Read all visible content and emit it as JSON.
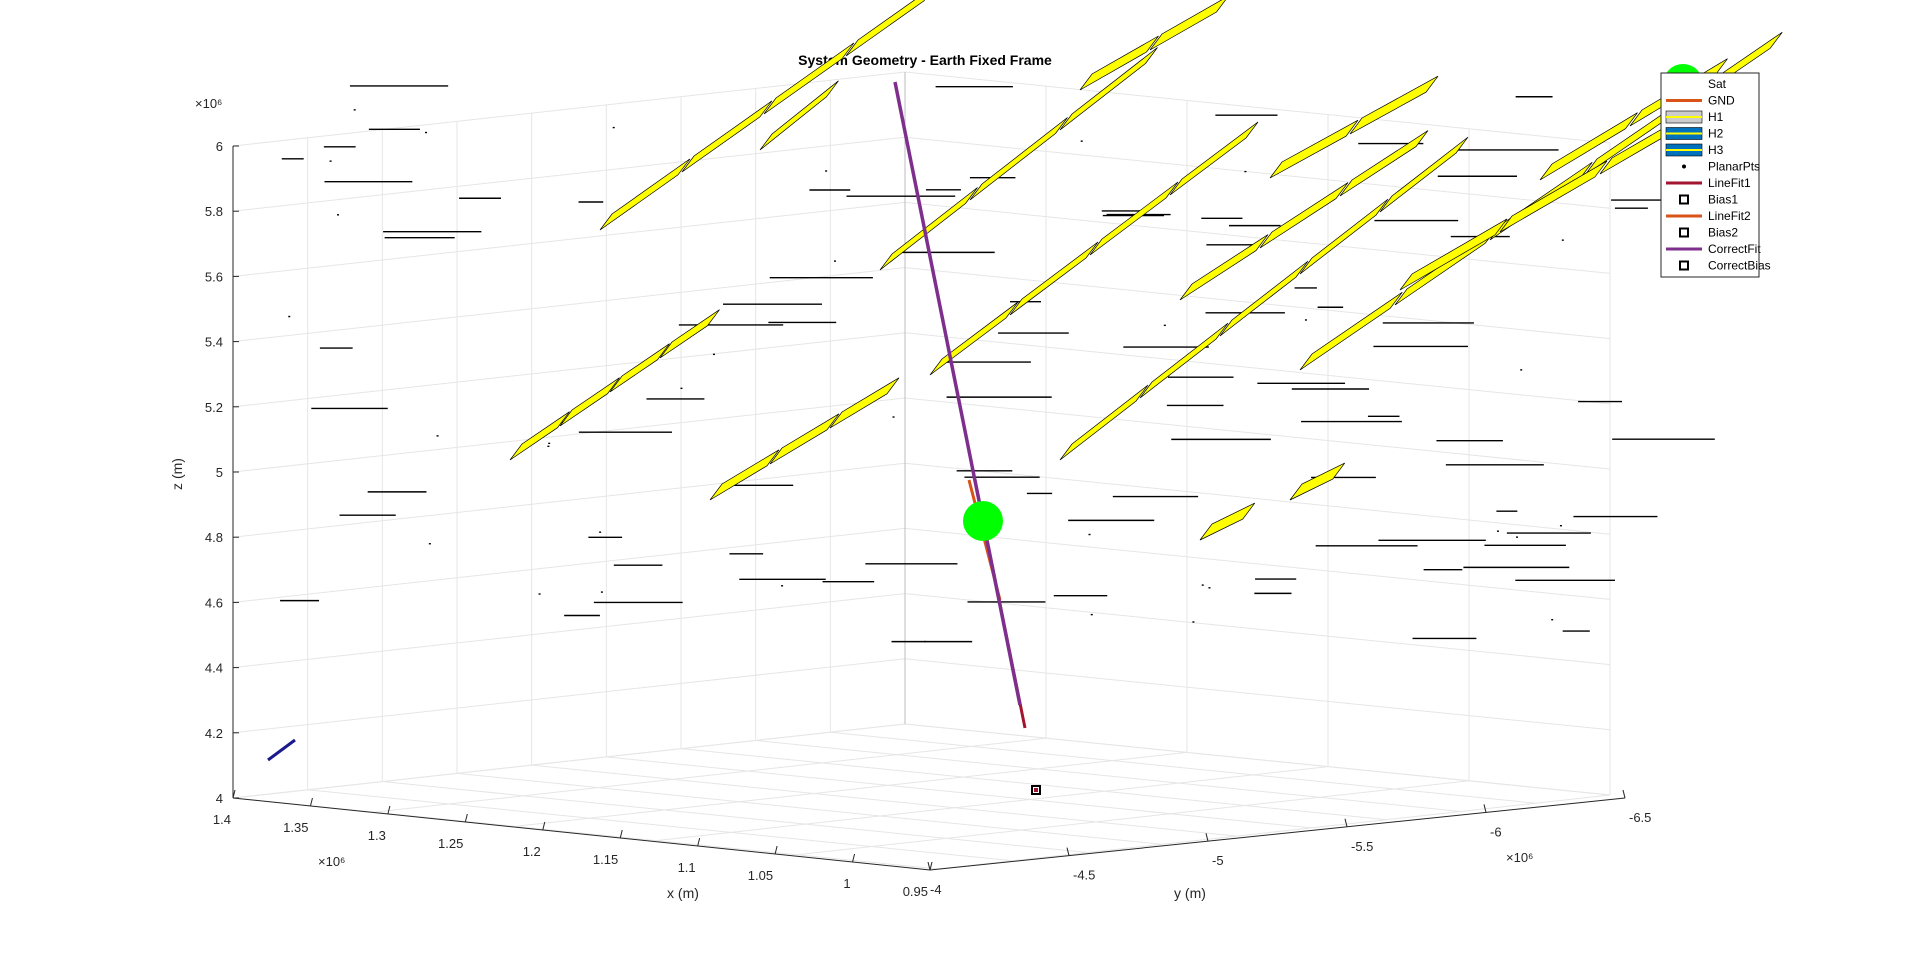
{
  "chart_data": {
    "type": "scatter",
    "title": "System Geometry - Earth Fixed Frame",
    "xlabel": "x (m)",
    "ylabel": "y (m)",
    "zlabel": "z (m)",
    "x_exponent": "×10⁶",
    "y_exponent": "×10⁶",
    "z_exponent": "×10⁶",
    "x_ticks": [
      "1.4",
      "1.35",
      "1.3",
      "1.25",
      "1.2",
      "1.15",
      "1.1",
      "1.05",
      "1",
      "0.95"
    ],
    "y_ticks": [
      "-4",
      "-4.5",
      "-5",
      "-5.5",
      "-6",
      "-6.5"
    ],
    "z_ticks": [
      "4",
      "4.2",
      "4.4",
      "4.6",
      "4.8",
      "5",
      "5.2",
      "5.4",
      "5.6",
      "5.8",
      "6"
    ],
    "xlim": [
      0.95,
      1.4
    ],
    "ylim": [
      -6.5,
      -4
    ],
    "zlim": [
      4,
      6
    ],
    "grid": true,
    "legend_position": "top-right",
    "legend": [
      {
        "label": "Sat",
        "kind": "marker-circle",
        "color": "#00ff00"
      },
      {
        "label": "GND",
        "kind": "line",
        "color": "#d95319"
      },
      {
        "label": "H1",
        "kind": "patch",
        "color": "#cccccc"
      },
      {
        "label": "H2",
        "kind": "patch",
        "color": "#0072bd"
      },
      {
        "label": "H3",
        "kind": "patch",
        "color": "#0072bd"
      },
      {
        "label": "PlanarPts",
        "kind": "marker-dot",
        "color": "#000000"
      },
      {
        "label": "LineFit1",
        "kind": "line",
        "color": "#a2142f"
      },
      {
        "label": "Bias1",
        "kind": "marker-square",
        "color": "#000000"
      },
      {
        "label": "LineFit2",
        "kind": "line",
        "color": "#d95319"
      },
      {
        "label": "Bias2",
        "kind": "marker-square",
        "color": "#000000"
      },
      {
        "label": "CorrectFit",
        "kind": "line",
        "color": "#7e2f8e"
      },
      {
        "label": "CorrectBias",
        "kind": "marker-square",
        "color": "#000000"
      }
    ],
    "colors": {
      "panel": "#ffff00",
      "sat": "#00ff00",
      "correct_fit": "#7e2f8e",
      "line_fit1": "#a2142f",
      "line_fit2": "#d95319",
      "ground_segment": "#1a1a8c"
    }
  }
}
